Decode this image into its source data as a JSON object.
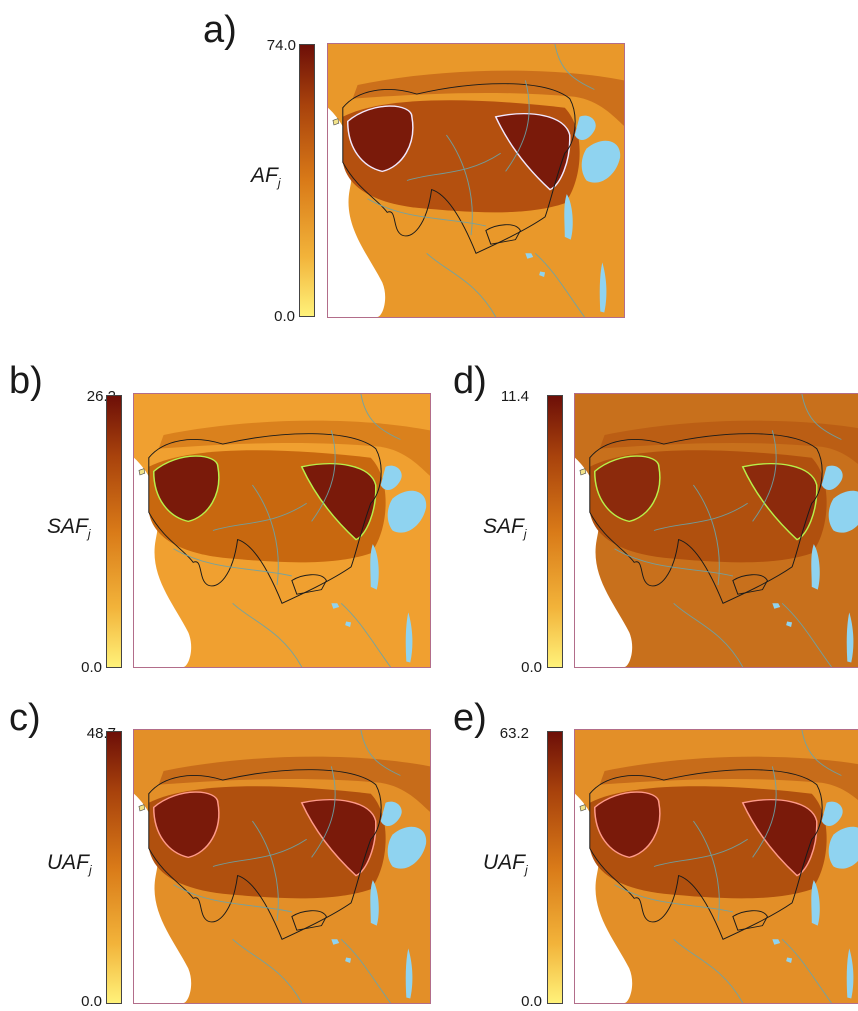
{
  "panels": [
    {
      "letter": "a)",
      "max": "74.0",
      "min": "0.0",
      "var": "AF",
      "sub": "j",
      "outline": "#f2e8ff"
    },
    {
      "letter": "b)",
      "max": "26.2",
      "min": "0.0",
      "var": "SAF",
      "sub": "j",
      "outline": "#b8f04a"
    },
    {
      "letter": "c)",
      "max": "48.7",
      "min": "0.0",
      "var": "UAF",
      "sub": "j",
      "outline": "#ff9a8a"
    },
    {
      "letter": "d)",
      "max": "11.4",
      "min": "0.0",
      "var": "SAF",
      "sub": "j",
      "outline": "#b8f04a"
    },
    {
      "letter": "e)",
      "max": "63.2",
      "min": "0.0",
      "var": "UAF",
      "sub": "j",
      "outline": "#ff9a8a"
    }
  ],
  "colors": {
    "ramp_low": "#fff27a",
    "ramp_high": "#6d0f08",
    "water": "#8fd3f0",
    "rivers": "#6aa3a8",
    "boundary": "#1a1a1a"
  }
}
